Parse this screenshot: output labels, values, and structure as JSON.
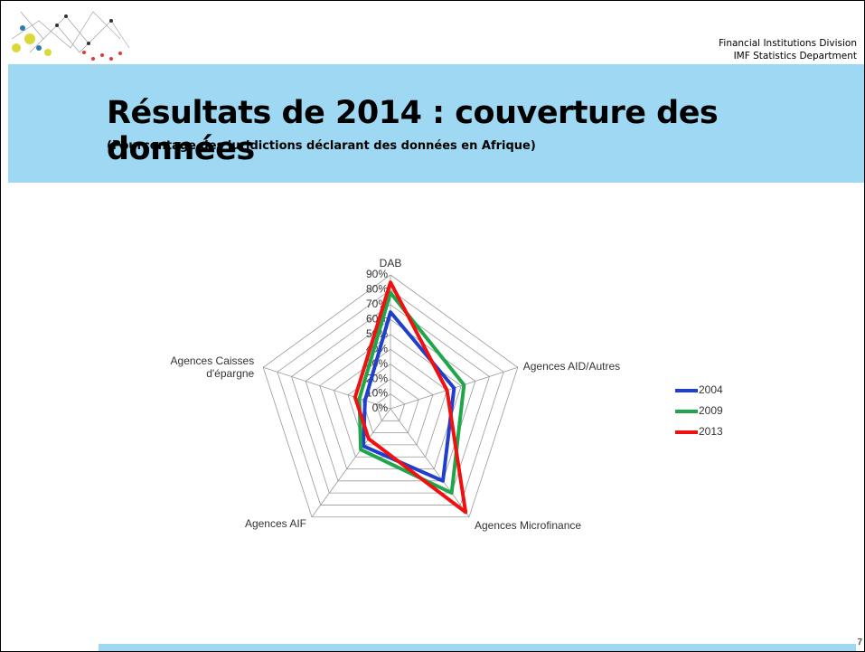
{
  "header": {
    "division": "Financial Institutions Division",
    "department": "IMF Statistics Department"
  },
  "page_number": "7",
  "chart_data": {
    "type": "radar",
    "title": "Résultats de 2014 : couverture des données",
    "subtitle": "(Pourcentage des juridictions déclarant des données en Afrique)",
    "categories": [
      "DAB",
      "Agences AID/Autres",
      "Agences Microfinance",
      "Agences AIF",
      "Agences Caisses d'épargne"
    ],
    "ylim": [
      0,
      90
    ],
    "yticks": [
      {
        "value": 0,
        "label": "0%"
      },
      {
        "value": 10,
        "label": "10%"
      },
      {
        "value": 20,
        "label": "20%"
      },
      {
        "value": 30,
        "label": "30%"
      },
      {
        "value": 40,
        "label": "40%"
      },
      {
        "value": 50,
        "label": "50%"
      },
      {
        "value": 60,
        "label": "60%"
      },
      {
        "value": 70,
        "label": "70%"
      },
      {
        "value": 80,
        "label": "80%"
      },
      {
        "value": 90,
        "label": "90%"
      }
    ],
    "grid": true,
    "legend": "right",
    "series": [
      {
        "name": "2004",
        "color": "#1f3fcc",
        "values": [
          65,
          45,
          60,
          31,
          18
        ]
      },
      {
        "name": "2009",
        "color": "#1fa64a",
        "values": [
          78,
          52,
          70,
          34,
          22
        ]
      },
      {
        "name": "2013",
        "color": "#f01010",
        "values": [
          85,
          40,
          86,
          25,
          25
        ]
      }
    ]
  }
}
